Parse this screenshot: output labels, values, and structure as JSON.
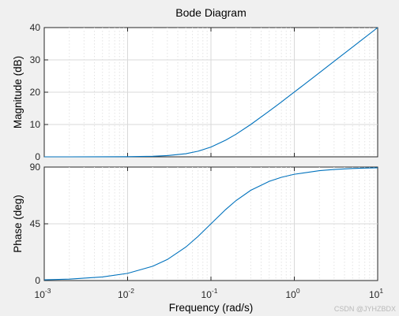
{
  "chart_data": [
    {
      "type": "line",
      "title": "Bode Diagram",
      "ylabel": "Magnitude (dB)",
      "xscale": "log",
      "xlim": [
        0.001,
        10
      ],
      "ylim": [
        0,
        40
      ],
      "yticks": [
        0,
        10,
        20,
        30,
        40
      ],
      "grid": true,
      "series": [
        {
          "x": [
            0.001,
            0.002,
            0.005,
            0.01,
            0.02,
            0.03,
            0.05,
            0.07,
            0.1,
            0.15,
            0.2,
            0.3,
            0.5,
            0.7,
            1,
            2,
            3,
            5,
            7,
            10
          ],
          "y": [
            0.0,
            0.0,
            0.01,
            0.04,
            0.17,
            0.37,
            0.97,
            1.74,
            3.01,
            5.16,
            6.99,
            10.0,
            14.15,
            16.98,
            20.04,
            26.03,
            29.55,
            33.98,
            36.9,
            40.0
          ]
        }
      ]
    },
    {
      "type": "line",
      "xlabel": "Frequency  (rad/s)",
      "ylabel": "Phase (deg)",
      "xscale": "log",
      "xlim": [
        0.001,
        10
      ],
      "ylim": [
        0,
        90
      ],
      "yticks": [
        0,
        45,
        90
      ],
      "xticks": [
        "10^-3",
        "10^-2",
        "10^-1",
        "10^0",
        "10^1"
      ],
      "grid": true,
      "series": [
        {
          "x": [
            0.001,
            0.002,
            0.005,
            0.01,
            0.02,
            0.03,
            0.05,
            0.07,
            0.1,
            0.15,
            0.2,
            0.3,
            0.5,
            0.7,
            1,
            2,
            3,
            5,
            7,
            10
          ],
          "y": [
            0.57,
            1.15,
            2.86,
            5.71,
            11.31,
            16.7,
            26.57,
            34.99,
            45.0,
            56.31,
            63.43,
            71.57,
            78.69,
            81.87,
            84.29,
            87.14,
            88.09,
            88.85,
            89.18,
            89.43
          ]
        }
      ]
    }
  ],
  "watermark": "CSDN @JYHZBDX"
}
